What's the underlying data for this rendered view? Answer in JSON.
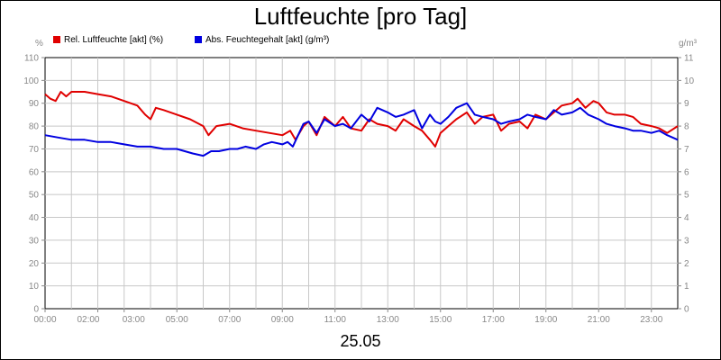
{
  "chart_data": {
    "type": "line",
    "title": "Luftfeuchte [pro Tag]",
    "xlabel": "25.05",
    "y_unit_left": "%",
    "y_unit_right": "g/m³",
    "ylim_left": [
      0,
      110
    ],
    "ylim_right": [
      0,
      11
    ],
    "yticks_left": [
      0,
      10,
      20,
      30,
      40,
      50,
      60,
      70,
      80,
      90,
      100,
      110
    ],
    "yticks_right": [
      0,
      1,
      2,
      3,
      4,
      5,
      6,
      7,
      8,
      9,
      10,
      11
    ],
    "xlim_hours": [
      0,
      24
    ],
    "xticks": [
      {
        "h": 0,
        "label": "00:00"
      },
      {
        "h": 2,
        "label": "02:00"
      },
      {
        "h": 3,
        "label": "03:00"
      },
      {
        "h": 5,
        "label": "05:00"
      },
      {
        "h": 7,
        "label": "07:00"
      },
      {
        "h": 9,
        "label": "09:00"
      },
      {
        "h": 11,
        "label": "11:00"
      },
      {
        "h": 13,
        "label": "13:00"
      },
      {
        "h": 15,
        "label": "15:00"
      },
      {
        "h": 17,
        "label": "17:00"
      },
      {
        "h": 19,
        "label": "19:00"
      },
      {
        "h": 21,
        "label": "21:00"
      },
      {
        "h": 23,
        "label": "23:00"
      }
    ],
    "grid": true,
    "legend_position": "top-left",
    "series": [
      {
        "name": "Rel. Luftfeuchte [akt] (%)",
        "color": "#e00000",
        "axis": "left",
        "points": [
          [
            0.0,
            94
          ],
          [
            0.2,
            92
          ],
          [
            0.4,
            91
          ],
          [
            0.6,
            95
          ],
          [
            0.8,
            93
          ],
          [
            1.0,
            95
          ],
          [
            1.5,
            95
          ],
          [
            2.0,
            94
          ],
          [
            2.5,
            93
          ],
          [
            3.0,
            91
          ],
          [
            3.5,
            89
          ],
          [
            3.8,
            85
          ],
          [
            4.0,
            83
          ],
          [
            4.2,
            88
          ],
          [
            4.5,
            87
          ],
          [
            5.0,
            85
          ],
          [
            5.5,
            83
          ],
          [
            6.0,
            80
          ],
          [
            6.2,
            76
          ],
          [
            6.5,
            80
          ],
          [
            7.0,
            81
          ],
          [
            7.5,
            79
          ],
          [
            8.0,
            78
          ],
          [
            8.5,
            77
          ],
          [
            9.0,
            76
          ],
          [
            9.3,
            78
          ],
          [
            9.5,
            74
          ],
          [
            9.8,
            80
          ],
          [
            10.0,
            82
          ],
          [
            10.3,
            76
          ],
          [
            10.6,
            84
          ],
          [
            11.0,
            80
          ],
          [
            11.3,
            84
          ],
          [
            11.6,
            79
          ],
          [
            12.0,
            78
          ],
          [
            12.3,
            83
          ],
          [
            12.6,
            81
          ],
          [
            13.0,
            80
          ],
          [
            13.3,
            78
          ],
          [
            13.6,
            83
          ],
          [
            14.0,
            80
          ],
          [
            14.3,
            78
          ],
          [
            14.6,
            74
          ],
          [
            14.8,
            71
          ],
          [
            15.0,
            77
          ],
          [
            15.3,
            80
          ],
          [
            15.6,
            83
          ],
          [
            16.0,
            86
          ],
          [
            16.3,
            81
          ],
          [
            16.6,
            84
          ],
          [
            17.0,
            85
          ],
          [
            17.3,
            78
          ],
          [
            17.6,
            81
          ],
          [
            18.0,
            82
          ],
          [
            18.3,
            79
          ],
          [
            18.6,
            85
          ],
          [
            19.0,
            83
          ],
          [
            19.3,
            86
          ],
          [
            19.6,
            89
          ],
          [
            20.0,
            90
          ],
          [
            20.2,
            92
          ],
          [
            20.5,
            88
          ],
          [
            20.8,
            91
          ],
          [
            21.0,
            90
          ],
          [
            21.3,
            86
          ],
          [
            21.6,
            85
          ],
          [
            22.0,
            85
          ],
          [
            22.3,
            84
          ],
          [
            22.6,
            81
          ],
          [
            23.0,
            80
          ],
          [
            23.3,
            79
          ],
          [
            23.6,
            77
          ],
          [
            24.0,
            80
          ]
        ]
      },
      {
        "name": "Abs. Feuchtegehalt [akt] (g/m³)",
        "color": "#0000e0",
        "axis": "right",
        "points": [
          [
            0.0,
            7.6
          ],
          [
            0.5,
            7.5
          ],
          [
            1.0,
            7.4
          ],
          [
            1.5,
            7.4
          ],
          [
            2.0,
            7.3
          ],
          [
            2.5,
            7.3
          ],
          [
            3.0,
            7.2
          ],
          [
            3.5,
            7.1
          ],
          [
            4.0,
            7.1
          ],
          [
            4.5,
            7.0
          ],
          [
            5.0,
            7.0
          ],
          [
            5.3,
            6.9
          ],
          [
            5.6,
            6.8
          ],
          [
            6.0,
            6.7
          ],
          [
            6.3,
            6.9
          ],
          [
            6.6,
            6.9
          ],
          [
            7.0,
            7.0
          ],
          [
            7.3,
            7.0
          ],
          [
            7.6,
            7.1
          ],
          [
            8.0,
            7.0
          ],
          [
            8.3,
            7.2
          ],
          [
            8.6,
            7.3
          ],
          [
            9.0,
            7.2
          ],
          [
            9.2,
            7.3
          ],
          [
            9.4,
            7.1
          ],
          [
            9.6,
            7.6
          ],
          [
            9.8,
            8.1
          ],
          [
            10.0,
            8.2
          ],
          [
            10.3,
            7.7
          ],
          [
            10.6,
            8.3
          ],
          [
            11.0,
            8.0
          ],
          [
            11.3,
            8.1
          ],
          [
            11.6,
            7.9
          ],
          [
            12.0,
            8.5
          ],
          [
            12.3,
            8.2
          ],
          [
            12.6,
            8.8
          ],
          [
            13.0,
            8.6
          ],
          [
            13.3,
            8.4
          ],
          [
            13.6,
            8.5
          ],
          [
            14.0,
            8.7
          ],
          [
            14.3,
            7.9
          ],
          [
            14.6,
            8.5
          ],
          [
            14.8,
            8.2
          ],
          [
            15.0,
            8.1
          ],
          [
            15.3,
            8.4
          ],
          [
            15.6,
            8.8
          ],
          [
            16.0,
            9.0
          ],
          [
            16.3,
            8.5
          ],
          [
            16.6,
            8.4
          ],
          [
            17.0,
            8.3
          ],
          [
            17.3,
            8.1
          ],
          [
            17.6,
            8.2
          ],
          [
            18.0,
            8.3
          ],
          [
            18.3,
            8.5
          ],
          [
            18.6,
            8.4
          ],
          [
            19.0,
            8.3
          ],
          [
            19.3,
            8.7
          ],
          [
            19.6,
            8.5
          ],
          [
            20.0,
            8.6
          ],
          [
            20.3,
            8.8
          ],
          [
            20.6,
            8.5
          ],
          [
            21.0,
            8.3
          ],
          [
            21.3,
            8.1
          ],
          [
            21.6,
            8.0
          ],
          [
            22.0,
            7.9
          ],
          [
            22.3,
            7.8
          ],
          [
            22.6,
            7.8
          ],
          [
            23.0,
            7.7
          ],
          [
            23.3,
            7.8
          ],
          [
            23.6,
            7.6
          ],
          [
            24.0,
            7.4
          ]
        ]
      }
    ]
  }
}
